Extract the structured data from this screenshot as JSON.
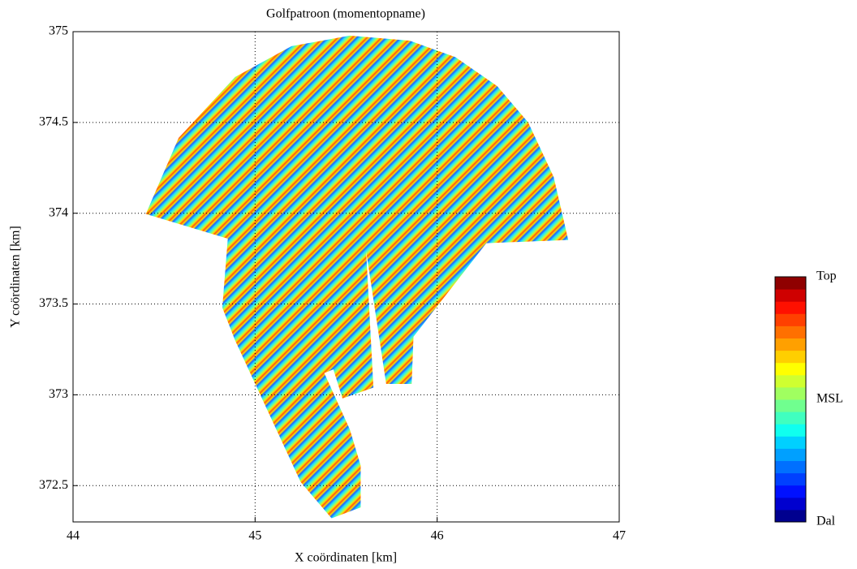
{
  "chart_data": {
    "type": "field",
    "title": "Golfpatroon (momentopname)",
    "x_label": "X coördinaten [km]",
    "y_label": "Y coördinaten [km]",
    "xlim": [
      44,
      47
    ],
    "ylim": [
      372.3,
      375
    ],
    "xticks": [
      44,
      45,
      46,
      47
    ],
    "yticks": [
      372.5,
      373,
      373.5,
      374,
      374.5,
      375
    ],
    "grid": true,
    "domain": {
      "x": [
        44.4,
        44.58,
        44.89,
        45.2,
        45.52,
        45.85,
        46.1,
        46.33,
        46.5,
        46.64,
        46.72,
        46.27,
        45.87,
        45.86,
        45.72,
        45.61,
        45.65,
        45.48,
        45.43,
        45.38,
        45.52,
        45.58,
        45.58,
        45.42,
        45.25,
        44.89,
        44.82,
        44.85
      ],
      "y": [
        373.996,
        374.415,
        374.75,
        374.92,
        374.978,
        374.95,
        374.86,
        374.7,
        374.5,
        374.2,
        373.853,
        373.835,
        373.32,
        373.06,
        373.06,
        373.79,
        373.04,
        372.98,
        373.14,
        373.12,
        372.81,
        372.61,
        372.38,
        372.32,
        372.52,
        373.3,
        373.48,
        373.86
      ]
    },
    "colormap": [
      "#00008f",
      "#0000cf",
      "#0010ff",
      "#0040ff",
      "#0070ff",
      "#00a0ff",
      "#00d0ff",
      "#10ffef",
      "#40ffbf",
      "#70ff8f",
      "#a0ff60",
      "#cfff30",
      "#ffff00",
      "#ffcf00",
      "#ffa000",
      "#ff7000",
      "#ff4000",
      "#ff1000",
      "#cf0000",
      "#8f0000"
    ],
    "colorbar_labels": [
      "Dal",
      "MSL",
      "Top"
    ]
  }
}
